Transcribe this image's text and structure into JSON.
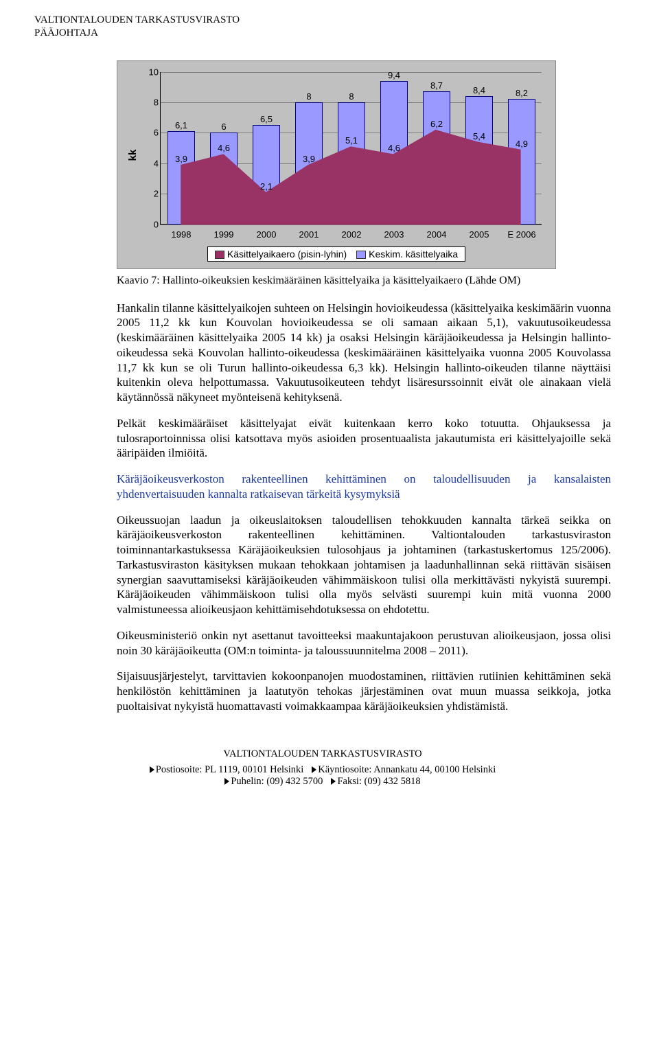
{
  "header": {
    "line1": "VALTIONTALOUDEN TARKASTUSVIRASTO",
    "line2": "PÄÄJOHTAJA"
  },
  "chart": {
    "type": "bar+area",
    "ylabel": "kk",
    "ylim": [
      0,
      10
    ],
    "ytick_step": 2,
    "categories": [
      "1998",
      "1999",
      "2000",
      "2001",
      "2002",
      "2003",
      "2004",
      "2005",
      "E 2006"
    ],
    "bars": {
      "values": [
        6.1,
        6,
        6.5,
        8,
        8,
        9.4,
        8.7,
        8.4,
        8.2
      ],
      "color": "#9999ff",
      "border": "#000080",
      "label_color": "#000000"
    },
    "area": {
      "values": [
        3.9,
        4.6,
        2.1,
        3.9,
        5.1,
        4.6,
        6.2,
        5.4,
        4.9
      ],
      "fill": "#993366",
      "stroke": "#993366",
      "label_color": "#000000"
    },
    "legend": [
      {
        "swatch": "#993366",
        "label": "Käsittelyaikaero (pisin-lyhin)"
      },
      {
        "swatch": "#9999ff",
        "label": "Keskim. käsittelyaika"
      }
    ],
    "background": "#c0c0c0",
    "grid_color": "#000000"
  },
  "caption": "Kaavio 7: Hallinto-oikeuksien keskimääräinen käsittelyaika ja käsittelyaikaero (Lähde OM)",
  "paragraphs": [
    {
      "class": "",
      "text": "Hankalin tilanne käsittelyaikojen suhteen on Helsingin hovioikeudessa (käsittelyaika keskimäärin vuonna 2005 11,2 kk kun Kouvolan hovioikeudessa se oli samaan aikaan 5,1), vakuutusoikeudessa (keskimääräinen käsittelyaika 2005 14 kk) ja osaksi Helsingin käräjäoikeudessa ja Helsingin hallinto-oikeudessa sekä Kouvolan hallinto-oikeudessa (keskimääräinen käsittelyaika vuonna 2005 Kouvolassa 11,7 kk kun se oli Turun hallinto-oikeudessa 6,3 kk). Helsingin hallinto-oikeuden tilanne näyttäisi kuitenkin oleva helpottumassa. Vakuutusoikeuteen tehdyt lisäresurssoinnit eivät ole ainakaan vielä käytännössä näkyneet myönteisenä kehityksenä."
    },
    {
      "class": "",
      "text": "Pelkät keskimääräiset käsittelyajat eivät kuitenkaan kerro koko totuutta. Ohjauksessa ja tulosraportoinnissa olisi katsottava myös asioiden prosentuaalista jakautumista eri käsittelyajoille sekä ääripäiden ilmiöitä."
    },
    {
      "class": "blue",
      "text": "Käräjäoikeusverkoston rakenteellinen kehittäminen on taloudellisuuden ja kansalaisten yhdenvertaisuuden kannalta ratkaisevan tärkeitä kysymyksiä"
    },
    {
      "class": "",
      "text": "Oikeussuojan laadun ja oikeuslaitoksen taloudellisen tehokkuuden kannalta tärkeä seikka on käräjäoikeusverkoston rakenteellinen kehittäminen. Valtiontalouden tarkastusviraston toiminnantarkastuksessa Käräjäoikeuksien tulosohjaus ja johtaminen (tarkastuskertomus 125/2006). Tarkastusviraston käsityksen mukaan tehokkaan johtamisen ja laadunhallinnan sekä riittävän sisäisen synergian saavuttamiseksi käräjäoikeuden vähimmäiskoon tulisi olla merkittävästi nykyistä suurempi. Käräjäoikeuden vähimmäiskoon tulisi olla myös selvästi suurempi kuin mitä vuonna 2000 valmistuneessa alioikeusjaon kehittämisehdotuksessa on ehdotettu."
    },
    {
      "class": "",
      "text": "Oikeusministeriö onkin nyt asettanut tavoitteeksi maakuntajakoon perustuvan alioikeusjaon, jossa olisi noin 30 käräjäoikeutta (OM:n toiminta- ja taloussuunnitelma 2008 – 2011)."
    },
    {
      "class": "",
      "text": "Sijaisuusjärjestelyt, tarvittavien kokoonpanojen muodostaminen, riittävien rutiinien kehittäminen sekä henkilöstön kehittäminen ja laatutyön tehokas järjestäminen ovat muun muassa seikkoja, jotka puoltaisivat nykyistä huomattavasti voimakkaampaa käräjäoikeuksien yhdistämistä."
    }
  ],
  "footer": {
    "org": "VALTIONTALOUDEN TARKASTUSVIRASTO",
    "items": [
      "Postiosoite: PL 1119, 00101 Helsinki",
      "Käyntiosoite: Annankatu 44, 00100 Helsinki",
      "Puhelin: (09) 432 5700",
      "Faksi: (09) 432 5818"
    ]
  }
}
